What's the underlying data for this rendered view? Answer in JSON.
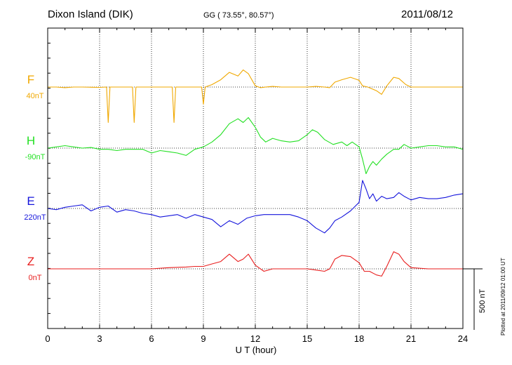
{
  "header": {
    "station": "Dixon Island (DIK)",
    "coords": "GG ( 73.55°,  80.57°)",
    "date": "2011/08/12"
  },
  "side_note": "Plotted at 2011/09/12 01:00 UT",
  "scale_label": "500 nT",
  "chart_data": {
    "type": "line",
    "xlabel": "U T (hour)",
    "ylabel": "",
    "xlim": [
      0,
      24
    ],
    "x_ticks": [
      0,
      3,
      6,
      9,
      12,
      15,
      18,
      21,
      24
    ],
    "grid": true,
    "series": [
      {
        "name": "F",
        "baseline_label": "40nT",
        "color": "#f0a800",
        "baseline_nT": 40,
        "x": [
          0,
          0.5,
          1,
          1.5,
          2,
          2.5,
          3,
          3.4,
          3.5,
          3.6,
          4,
          4.5,
          4.9,
          5,
          5.1,
          5.5,
          6,
          6.5,
          7,
          7.2,
          7.3,
          7.4,
          8,
          8.5,
          8.9,
          9,
          9.1,
          9.5,
          10,
          10.5,
          11,
          11.3,
          11.6,
          12,
          12.3,
          12.6,
          13,
          13.5,
          14,
          14.5,
          15,
          15.5,
          16,
          16.3,
          16.6,
          17,
          17.5,
          18,
          18.2,
          18.5,
          19,
          19.3,
          19.6,
          20,
          20.3,
          20.7,
          21,
          21.5,
          22,
          22.5,
          23,
          23.5,
          24
        ],
        "values": [
          40,
          40,
          35,
          40,
          40,
          38,
          37,
          40,
          -250,
          40,
          40,
          40,
          40,
          -250,
          40,
          40,
          40,
          40,
          40,
          40,
          -250,
          40,
          40,
          40,
          40,
          -100,
          40,
          60,
          100,
          160,
          130,
          180,
          150,
          50,
          35,
          40,
          45,
          40,
          40,
          40,
          40,
          45,
          40,
          35,
          80,
          100,
          120,
          95,
          50,
          40,
          10,
          -20,
          50,
          120,
          110,
          60,
          40,
          40,
          40,
          40,
          40,
          40,
          40
        ]
      },
      {
        "name": "H",
        "baseline_label": "-90nT",
        "color": "#22e022",
        "baseline_nT": -90,
        "x": [
          0,
          0.5,
          1,
          1.5,
          2,
          2.5,
          3,
          3.5,
          4,
          4.5,
          5,
          5.5,
          6,
          6.5,
          7,
          7.5,
          8,
          8.5,
          9,
          9.5,
          10,
          10.5,
          11,
          11.3,
          11.6,
          12,
          12.3,
          12.6,
          13,
          13.5,
          14,
          14.5,
          15,
          15.3,
          15.6,
          16,
          16.5,
          17,
          17.3,
          17.6,
          18,
          18.2,
          18.4,
          18.6,
          18.8,
          19,
          19.3,
          19.6,
          20,
          20.3,
          20.6,
          21,
          21.5,
          22,
          22.5,
          23,
          23.5,
          24
        ],
        "values": [
          -90,
          -80,
          -70,
          -80,
          -90,
          -85,
          -100,
          -100,
          -110,
          -100,
          -100,
          -100,
          -130,
          -110,
          -120,
          -130,
          -150,
          -100,
          -80,
          -40,
          20,
          110,
          150,
          120,
          160,
          80,
          0,
          -40,
          -10,
          -30,
          -40,
          -30,
          20,
          60,
          40,
          -20,
          -60,
          -40,
          -70,
          -40,
          -80,
          -180,
          -300,
          -240,
          -200,
          -230,
          -180,
          -140,
          -100,
          -100,
          -60,
          -90,
          -80,
          -70,
          -70,
          -80,
          -80,
          -100
        ]
      },
      {
        "name": "E",
        "baseline_label": "220nT",
        "color": "#1414dc",
        "baseline_nT": 220,
        "x": [
          0,
          0.5,
          1,
          1.5,
          2,
          2.5,
          3,
          3.5,
          4,
          4.5,
          5,
          5.5,
          6,
          6.5,
          7,
          7.5,
          8,
          8.5,
          9,
          9.5,
          10,
          10.5,
          11,
          11.5,
          12,
          12.5,
          13,
          13.5,
          14,
          14.5,
          15,
          15.5,
          16,
          16.3,
          16.6,
          17,
          17.5,
          18,
          18.2,
          18.4,
          18.6,
          18.8,
          19,
          19.3,
          19.6,
          20,
          20.3,
          20.6,
          21,
          21.5,
          22,
          22.5,
          23,
          23.5,
          24
        ],
        "values": [
          220,
          210,
          230,
          240,
          250,
          200,
          230,
          240,
          190,
          210,
          200,
          180,
          170,
          150,
          160,
          170,
          140,
          170,
          150,
          130,
          70,
          120,
          90,
          140,
          160,
          170,
          170,
          170,
          170,
          150,
          120,
          60,
          20,
          60,
          120,
          150,
          200,
          270,
          450,
          380,
          300,
          340,
          280,
          320,
          300,
          310,
          350,
          320,
          290,
          310,
          300,
          300,
          310,
          330,
          340
        ]
      },
      {
        "name": "Z",
        "baseline_label": "0nT",
        "color": "#e81e1e",
        "baseline_nT": 0,
        "x": [
          0,
          1,
          2,
          3,
          4,
          5,
          6,
          7,
          8,
          8.5,
          9,
          9.5,
          10,
          10.5,
          11,
          11.3,
          11.6,
          12,
          12.5,
          13,
          14,
          15,
          15.5,
          16,
          16.3,
          16.6,
          17,
          17.5,
          18,
          18.3,
          18.6,
          19,
          19.3,
          19.6,
          20,
          20.3,
          20.6,
          21,
          22,
          23,
          24
        ],
        "values": [
          0,
          0,
          0,
          0,
          0,
          0,
          0,
          10,
          15,
          20,
          20,
          40,
          60,
          120,
          60,
          80,
          120,
          30,
          -20,
          0,
          0,
          0,
          -10,
          -20,
          0,
          80,
          110,
          100,
          50,
          -20,
          -20,
          -50,
          -60,
          20,
          140,
          120,
          60,
          10,
          0,
          0,
          0
        ]
      }
    ],
    "scale_bar_nT": 500
  }
}
